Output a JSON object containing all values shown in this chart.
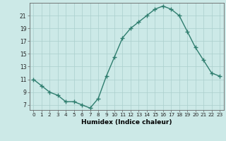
{
  "x": [
    0,
    1,
    2,
    3,
    4,
    5,
    6,
    7,
    8,
    9,
    10,
    11,
    12,
    13,
    14,
    15,
    16,
    17,
    18,
    19,
    20,
    21,
    22,
    23
  ],
  "y": [
    11,
    10,
    9,
    8.5,
    7.5,
    7.5,
    7,
    6.5,
    8,
    11.5,
    14.5,
    17.5,
    19,
    20,
    21,
    22,
    22.5,
    22,
    21,
    18.5,
    16,
    14,
    12,
    11.5
  ],
  "line_color": "#2e7d6e",
  "marker": "+",
  "bg_color": "#cce9e7",
  "grid_color": "#aacfcc",
  "xlabel": "Humidex (Indice chaleur)",
  "xlim": [
    -0.5,
    23.5
  ],
  "ylim": [
    6.2,
    23.0
  ],
  "yticks": [
    7,
    9,
    11,
    13,
    15,
    17,
    19,
    21
  ],
  "xticks": [
    0,
    1,
    2,
    3,
    4,
    5,
    6,
    7,
    8,
    9,
    10,
    11,
    12,
    13,
    14,
    15,
    16,
    17,
    18,
    19,
    20,
    21,
    22,
    23
  ],
  "xtick_labels": [
    "0",
    "1",
    "2",
    "3",
    "4",
    "5",
    "6",
    "7",
    "8",
    "9",
    "10",
    "11",
    "12",
    "13",
    "14",
    "15",
    "16",
    "17",
    "18",
    "19",
    "20",
    "21",
    "22",
    "23"
  ],
  "linewidth": 1.0,
  "markersize": 4,
  "markeredgewidth": 1.0
}
